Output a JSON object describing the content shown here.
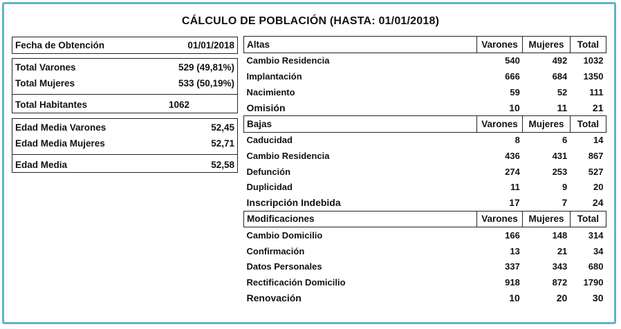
{
  "title": "CÁLCULO DE POBLACIÓN (HASTA: 01/01/2018)",
  "summary": {
    "fecha": {
      "label": "Fecha de Obtención",
      "value": "01/01/2018"
    },
    "total_varones": {
      "label": "Total Varones",
      "value": "529 (49,81%)"
    },
    "total_mujeres": {
      "label": "Total Mujeres",
      "value": "533 (50,19%)"
    },
    "total_habitantes": {
      "label": "Total Habitantes",
      "value": "1062"
    },
    "edad_media_varones": {
      "label": "Edad Media Varones",
      "value": "52,45"
    },
    "edad_media_mujeres": {
      "label": "Edad Media Mujeres",
      "value": "52,71"
    },
    "edad_media": {
      "label": "Edad Media",
      "value": "52,58"
    }
  },
  "columns": {
    "varones": "Varones",
    "mujeres": "Mujeres",
    "total": "Total"
  },
  "sections": [
    {
      "name": "Altas",
      "rows": [
        {
          "label": "Cambio Residencia",
          "varones": "540",
          "mujeres": "492",
          "total": "1032"
        },
        {
          "label": "Implantación",
          "varones": "666",
          "mujeres": "684",
          "total": "1350"
        },
        {
          "label": "Nacimiento",
          "varones": "59",
          "mujeres": "52",
          "total": "111"
        },
        {
          "label": "Omisión",
          "varones": "10",
          "mujeres": "11",
          "total": "21"
        }
      ]
    },
    {
      "name": "Bajas",
      "rows": [
        {
          "label": "Caducidad",
          "varones": "8",
          "mujeres": "6",
          "total": "14"
        },
        {
          "label": "Cambio Residencia",
          "varones": "436",
          "mujeres": "431",
          "total": "867"
        },
        {
          "label": "Defunción",
          "varones": "274",
          "mujeres": "253",
          "total": "527"
        },
        {
          "label": "Duplicidad",
          "varones": "11",
          "mujeres": "9",
          "total": "20"
        },
        {
          "label": "Inscripción Indebida",
          "varones": "17",
          "mujeres": "7",
          "total": "24"
        }
      ]
    },
    {
      "name": "Modificaciones",
      "rows": [
        {
          "label": "Cambio Domicilio",
          "varones": "166",
          "mujeres": "148",
          "total": "314"
        },
        {
          "label": "Confirmación",
          "varones": "13",
          "mujeres": "21",
          "total": "34"
        },
        {
          "label": "Datos Personales",
          "varones": "337",
          "mujeres": "343",
          "total": "680"
        },
        {
          "label": "Rectificación Domicilio",
          "varones": "918",
          "mujeres": "872",
          "total": "1790"
        },
        {
          "label": "Renovación",
          "varones": "10",
          "mujeres": "20",
          "total": "30"
        }
      ]
    }
  ]
}
